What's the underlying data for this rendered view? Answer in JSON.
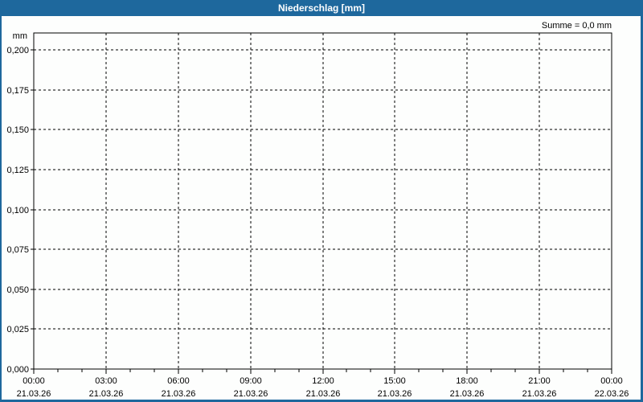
{
  "titlebar": {
    "title": "Niederschlag [mm]"
  },
  "summary_label": "Summe = 0,0 mm",
  "colors": {
    "titlebar_bg": "#1e689d",
    "frame_border": "#1e689d",
    "content_bg": "#fdfefd",
    "grid_line": "#000000",
    "axis_line": "#000000",
    "label_text": "#000000",
    "title_text": "#ffffff"
  },
  "chart_data": {
    "type": "bar",
    "title": "Niederschlag [mm]",
    "unit_label": "mm",
    "ylabel": "mm",
    "ylim": [
      0,
      0.2
    ],
    "ytick_step": 0.025,
    "yticks": [
      {
        "value": 0.0,
        "label": "0,000"
      },
      {
        "value": 0.025,
        "label": "0,025"
      },
      {
        "value": 0.05,
        "label": "0,050"
      },
      {
        "value": 0.075,
        "label": "0,075"
      },
      {
        "value": 0.1,
        "label": "0,100"
      },
      {
        "value": 0.125,
        "label": "0,125"
      },
      {
        "value": 0.15,
        "label": "0,150"
      },
      {
        "value": 0.175,
        "label": "0,175"
      },
      {
        "value": 0.2,
        "label": "0,200"
      }
    ],
    "x_range_hours": [
      0,
      24
    ],
    "xticks": [
      {
        "hour": 0,
        "time": "00:00",
        "date": "21.03.26"
      },
      {
        "hour": 3,
        "time": "03:00",
        "date": "21.03.26"
      },
      {
        "hour": 6,
        "time": "06:00",
        "date": "21.03.26"
      },
      {
        "hour": 9,
        "time": "09:00",
        "date": "21.03.26"
      },
      {
        "hour": 12,
        "time": "12:00",
        "date": "21.03.26"
      },
      {
        "hour": 15,
        "time": "15:00",
        "date": "21.03.26"
      },
      {
        "hour": 18,
        "time": "18:00",
        "date": "21.03.26"
      },
      {
        "hour": 21,
        "time": "21:00",
        "date": "21.03.26"
      },
      {
        "hour": 24,
        "time": "00:00",
        "date": "22.03.26"
      }
    ],
    "minor_tick_every_hours": 1,
    "grid": true,
    "legend": null,
    "series": [],
    "values": [],
    "sum_label": "Summe = 0,0 mm",
    "sum_mm": 0.0
  }
}
